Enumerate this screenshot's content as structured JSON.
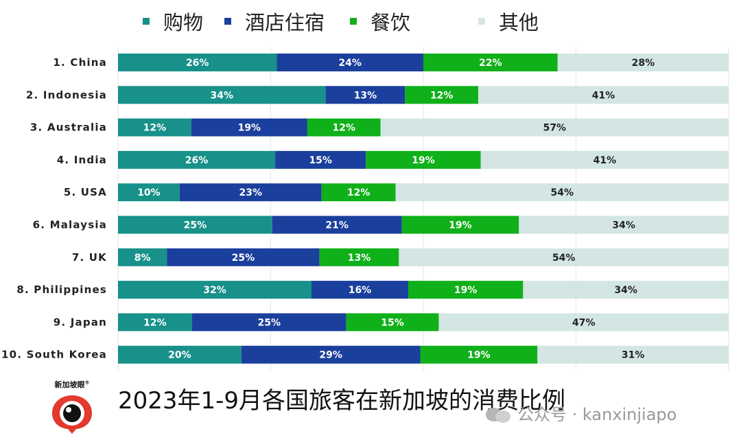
{
  "chart_data": {
    "type": "bar",
    "orientation": "horizontal",
    "stacked": true,
    "percent_stacked": true,
    "categories": [
      "1. China",
      "2. Indonesia",
      "3. Australia",
      "4. India",
      "5. USA",
      "6. Malaysia",
      "7. UK",
      "8. Philippines",
      "9. Japan",
      "10. South Korea"
    ],
    "series": [
      {
        "name": "购物",
        "color": "#17918a",
        "label_color": "#ffffff",
        "values": [
          26,
          34,
          12,
          26,
          10,
          25,
          8,
          32,
          12,
          20
        ]
      },
      {
        "name": "酒店住宿",
        "color": "#1b3f9c",
        "label_color": "#ffffff",
        "values": [
          24,
          13,
          19,
          15,
          23,
          21,
          25,
          16,
          25,
          29
        ]
      },
      {
        "name": "餐饮",
        "color": "#10b01a",
        "label_color": "#ffffff",
        "values": [
          22,
          12,
          12,
          19,
          12,
          19,
          13,
          19,
          15,
          19
        ]
      },
      {
        "name": "其他",
        "color": "#d3e6e4",
        "label_color": "#222222",
        "values": [
          28,
          41,
          57,
          41,
          54,
          34,
          54,
          34,
          47,
          31
        ]
      }
    ],
    "value_suffix": "%",
    "xlim": [
      0,
      100
    ],
    "grid": true,
    "legend_position": "top"
  },
  "caption": "2023年1-9月各国旅客在新加坡的消费比例",
  "logo": {
    "text": "新加坡眼",
    "mark": "®"
  },
  "watermark": {
    "text": "公众号 · kanxinjiapo"
  }
}
